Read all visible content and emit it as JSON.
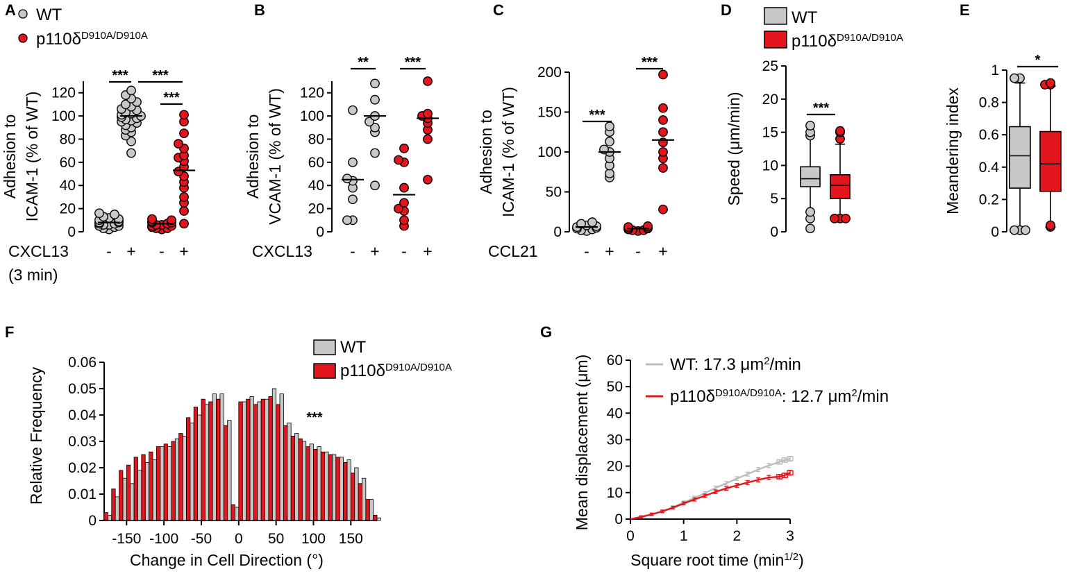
{
  "colors": {
    "wt": "#c8c8c8",
    "mutant": "#e3151d",
    "stroke": "#000000",
    "wt_line": "#bdbdbd"
  },
  "legend_top": {
    "wt": "WT",
    "mut_prefix": "p110δ",
    "mut_super": "D910A/D910A"
  },
  "chart_data": [
    {
      "panel": "A",
      "type": "scatter",
      "ylabel_line1": "Adhesion to",
      "ylabel_line2": "ICAM-1 (% of WT)",
      "ylim": [
        0,
        130
      ],
      "yticks": [
        "0",
        "20",
        "40",
        "60",
        "80",
        "100",
        "120"
      ],
      "treatment_label": "CXCL13",
      "treatment_sub": "(3 min)",
      "group_signs": [
        "-",
        "+",
        "-",
        "+"
      ],
      "groups": [
        {
          "name": "WT -",
          "series": "wt",
          "mean": 8,
          "values": [
            2,
            3,
            4,
            5,
            5,
            6,
            6,
            7,
            7,
            8,
            8,
            9,
            10,
            11,
            12,
            13,
            15,
            16
          ]
        },
        {
          "name": "WT +",
          "series": "wt",
          "mean": 100,
          "values": [
            68,
            78,
            83,
            86,
            88,
            90,
            92,
            94,
            95,
            96,
            97,
            98,
            99,
            100,
            101,
            102,
            103,
            105,
            106,
            108,
            110,
            112,
            115,
            118,
            122
          ]
        },
        {
          "name": "mutant -",
          "series": "mutant",
          "mean": 7,
          "values": [
            2,
            3,
            3,
            4,
            5,
            5,
            6,
            6,
            7,
            8,
            8,
            9,
            10,
            11
          ]
        },
        {
          "name": "mutant +",
          "series": "mutant",
          "mean": 53,
          "values": [
            7,
            18,
            25,
            30,
            38,
            43,
            48,
            52,
            56,
            61,
            64,
            66,
            72,
            76,
            85,
            95,
            101
          ]
        }
      ],
      "significance": [
        "***",
        "***",
        "***"
      ]
    },
    {
      "panel": "B",
      "type": "scatter",
      "ylabel_line1": "Adhesion to",
      "ylabel_line2": "VCAM-1 (% of WT)",
      "ylim": [
        0,
        130
      ],
      "yticks": [
        "0",
        "20",
        "40",
        "60",
        "80",
        "100",
        "120"
      ],
      "treatment_label": "CXCL13",
      "group_signs": [
        "-",
        "+",
        "-",
        "+"
      ],
      "groups": [
        {
          "name": "WT -",
          "series": "wt",
          "mean": 45,
          "values": [
            10,
            10,
            28,
            38,
            44,
            46,
            60,
            105
          ]
        },
        {
          "name": "WT +",
          "series": "wt",
          "mean": 100,
          "values": [
            40,
            68,
            86,
            90,
            95,
            100,
            114,
            128
          ]
        },
        {
          "name": "mutant -",
          "series": "mutant",
          "mean": 32,
          "values": [
            5,
            10,
            18,
            20,
            25,
            38,
            60,
            62,
            72
          ]
        },
        {
          "name": "mutant +",
          "series": "mutant",
          "mean": 98,
          "values": [
            45,
            80,
            88,
            94,
            98,
            100,
            102,
            130
          ]
        }
      ],
      "significance": [
        "**",
        "***"
      ]
    },
    {
      "panel": "C",
      "type": "scatter",
      "ylabel_line1": "Adhesion to",
      "ylabel_line2": "ICAM-1 (% of WT)",
      "ylim": [
        0,
        200
      ],
      "yticks": [
        "0",
        "50",
        "100",
        "150",
        "200"
      ],
      "treatment_label": "CCL21",
      "group_signs": [
        "-",
        "+",
        "-",
        "+"
      ],
      "groups": [
        {
          "name": "WT -",
          "series": "wt",
          "mean": 6,
          "values": [
            1,
            2,
            3,
            4,
            5,
            6,
            7,
            8,
            10,
            12
          ]
        },
        {
          "name": "WT +",
          "series": "wt",
          "mean": 100,
          "values": [
            68,
            73,
            83,
            92,
            100,
            103,
            113,
            125,
            132
          ]
        },
        {
          "name": "mutant -",
          "series": "mutant",
          "mean": 4,
          "values": [
            1,
            2,
            2,
            3,
            4,
            4,
            5,
            6,
            7
          ]
        },
        {
          "name": "mutant +",
          "series": "mutant",
          "mean": 115,
          "values": [
            28,
            80,
            92,
            100,
            112,
            125,
            140,
            155,
            197
          ]
        }
      ],
      "significance": [
        "***",
        "***"
      ]
    },
    {
      "panel": "D",
      "type": "box",
      "ylabel": "Speed (μm/min)",
      "ylim": [
        0,
        25
      ],
      "yticks": [
        "0",
        "5",
        "10",
        "15",
        "20",
        "25"
      ],
      "legend": {
        "wt": "WT",
        "mut_prefix": "p110δ",
        "mut_super": "D910A/D910A"
      },
      "boxes": [
        {
          "series": "wt",
          "whisker_low": 3.0,
          "q1": 6.8,
          "median": 8.0,
          "q3": 9.8,
          "whisker_high": 14.5,
          "outliers": [
            0.5,
            2.0,
            3.0,
            14.5,
            15.0,
            16.0
          ]
        },
        {
          "series": "mutant",
          "whisker_low": 2.3,
          "q1": 5.0,
          "median": 7.0,
          "q3": 8.6,
          "whisker_high": 13.2,
          "outliers": [
            2.0,
            2.0,
            2.0,
            14.0,
            15.0,
            15.2
          ]
        }
      ],
      "significance": [
        "***"
      ]
    },
    {
      "panel": "E",
      "type": "box",
      "ylabel": "Meandering index",
      "ylim": [
        0,
        1
      ],
      "yticks": [
        "0",
        "0.2",
        "0.4",
        "0.6",
        "0.8",
        "1"
      ],
      "boxes": [
        {
          "series": "wt",
          "whisker_low": 0.02,
          "q1": 0.27,
          "median": 0.47,
          "q3": 0.65,
          "whisker_high": 0.92,
          "outliers": [
            0.01,
            0.01,
            0.01,
            0.95,
            0.95
          ]
        },
        {
          "series": "mutant",
          "whisker_low": 0.03,
          "q1": 0.25,
          "median": 0.42,
          "q3": 0.62,
          "whisker_high": 0.9,
          "outliers": [
            0.03,
            0.04,
            0.91,
            0.91,
            0.92
          ]
        }
      ],
      "significance": [
        "*"
      ]
    },
    {
      "panel": "F",
      "type": "bar",
      "xlabel": "Change in Cell Direction (°)",
      "ylabel": "Relative Frequency",
      "xlim": [
        -180,
        185
      ],
      "ylim": [
        0,
        0.06
      ],
      "xticks": [
        "-150",
        "-100",
        "-50",
        "0",
        "50",
        "100",
        "150"
      ],
      "yticks": [
        "0",
        "0.01",
        "0.02",
        "0.03",
        "0.04",
        "0.05",
        "0.06"
      ],
      "legend": {
        "wt": "WT",
        "mut_prefix": "p110δ",
        "mut_super": "D910A/D910A"
      },
      "annotation": "***",
      "bin_centers": [
        -175,
        -165,
        -155,
        -145,
        -135,
        -125,
        -115,
        -105,
        -95,
        -85,
        -75,
        -65,
        -55,
        -45,
        -35,
        -25,
        -15,
        -5,
        5,
        15,
        25,
        35,
        45,
        55,
        65,
        75,
        85,
        95,
        105,
        115,
        125,
        135,
        145,
        155,
        165,
        175,
        185
      ],
      "series": [
        {
          "name": "WT",
          "values": [
            0.002,
            0.009,
            0.016,
            0.014,
            0.019,
            0.022,
            0.023,
            0.028,
            0.028,
            0.031,
            0.032,
            0.037,
            0.04,
            0.044,
            0.048,
            0.048,
            0.038,
            0.005,
            0.045,
            0.047,
            0.045,
            0.046,
            0.05,
            0.048,
            0.037,
            0.033,
            0.03,
            0.029,
            0.028,
            0.026,
            0.025,
            0.024,
            0.023,
            0.02,
            0.016,
            0.008,
            0.001
          ]
        },
        {
          "name": "mutant",
          "values": [
            0.003,
            0.012,
            0.019,
            0.021,
            0.024,
            0.025,
            0.026,
            0.028,
            0.029,
            0.03,
            0.033,
            0.039,
            0.043,
            0.046,
            0.045,
            0.046,
            0.036,
            0.006,
            0.045,
            0.046,
            0.044,
            0.046,
            0.047,
            0.044,
            0.036,
            0.032,
            0.031,
            0.028,
            0.027,
            0.026,
            0.025,
            0.024,
            0.022,
            0.018,
            0.014,
            0.008,
            0.002
          ]
        }
      ]
    },
    {
      "panel": "G",
      "type": "line",
      "xlabel_prefix": "Square root time (min",
      "xlabel_super": "1/2",
      "xlabel_suffix": ")",
      "ylabel": "Mean displacement (μm)",
      "xlim": [
        0,
        3
      ],
      "ylim": [
        0,
        60
      ],
      "xticks": [
        "0",
        "1",
        "2",
        "3"
      ],
      "yticks": [
        "0",
        "10",
        "20",
        "30",
        "40",
        "50",
        "60"
      ],
      "legend": {
        "wt_label": "WT: 17.3 μm",
        "wt_sup": "2",
        "wt_suffix": "/min",
        "mut_prefix": "p110δ",
        "mut_super": "D910A/D910A",
        "mut_label": ": 12.7 μm",
        "mut_sup": "2",
        "mut_suffix": "/min"
      },
      "series": [
        {
          "name": "WT",
          "x": [
            0,
            0.2,
            0.4,
            0.6,
            0.8,
            1.0,
            1.2,
            1.4,
            1.6,
            1.8,
            2.0,
            2.2,
            2.4,
            2.6,
            2.8,
            2.9,
            3.0
          ],
          "y": [
            0,
            0.8,
            1.8,
            3.0,
            4.5,
            6.3,
            8.0,
            9.8,
            11.8,
            13.5,
            15.3,
            17.0,
            18.7,
            20.2,
            21.6,
            22.3,
            22.8
          ]
        },
        {
          "name": "mutant",
          "x": [
            0,
            0.2,
            0.4,
            0.6,
            0.8,
            1.0,
            1.2,
            1.4,
            1.6,
            1.8,
            2.0,
            2.2,
            2.4,
            2.6,
            2.8,
            2.9,
            3.0
          ],
          "y": [
            0,
            0.8,
            1.8,
            2.9,
            4.3,
            5.9,
            7.4,
            8.8,
            10.3,
            11.6,
            12.7,
            13.8,
            14.8,
            15.7,
            16.0,
            16.5,
            17.5
          ]
        }
      ]
    }
  ]
}
